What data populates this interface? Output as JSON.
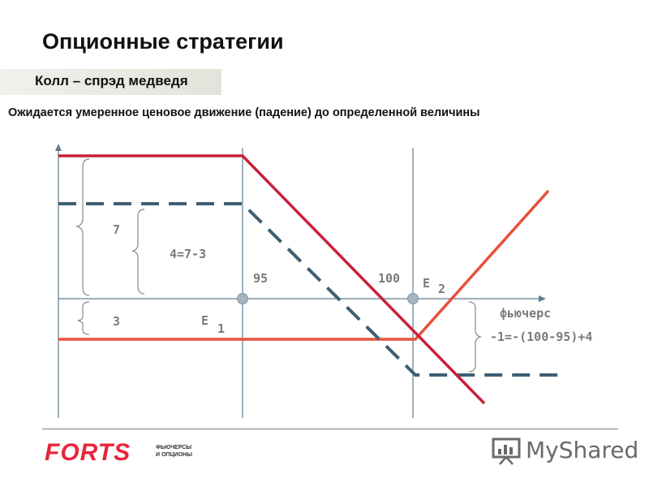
{
  "header": {
    "title": "Опционные стратегии",
    "subtitle": "Колл – спрэд медведя",
    "description": "Ожидается умеренное ценовое движение (падение) до определенной величины"
  },
  "diagram": {
    "labels": {
      "premium_diff": "7",
      "net_credit": "4=7-3",
      "premium_paid": "3",
      "strike1": "95",
      "strike2": "100",
      "e1_letter": "E",
      "e1_index": "1",
      "e2_letter": "E",
      "e2_index": "2",
      "x_axis": "фьючерс",
      "net_loss": "-1=-(100-95)+4"
    },
    "colors": {
      "short_call": "#c8203a",
      "long_call": "#e8513a",
      "combined": "#3f5f72",
      "axis": "#5f7d8f",
      "label": "#7a7a7a"
    }
  },
  "footer": {
    "logo_main": "FORTS",
    "logo_line1": "ФЬЮЧЕРСЫ",
    "logo_line2": "И ОПЦИОНЫ",
    "watermark": "MyShared"
  }
}
